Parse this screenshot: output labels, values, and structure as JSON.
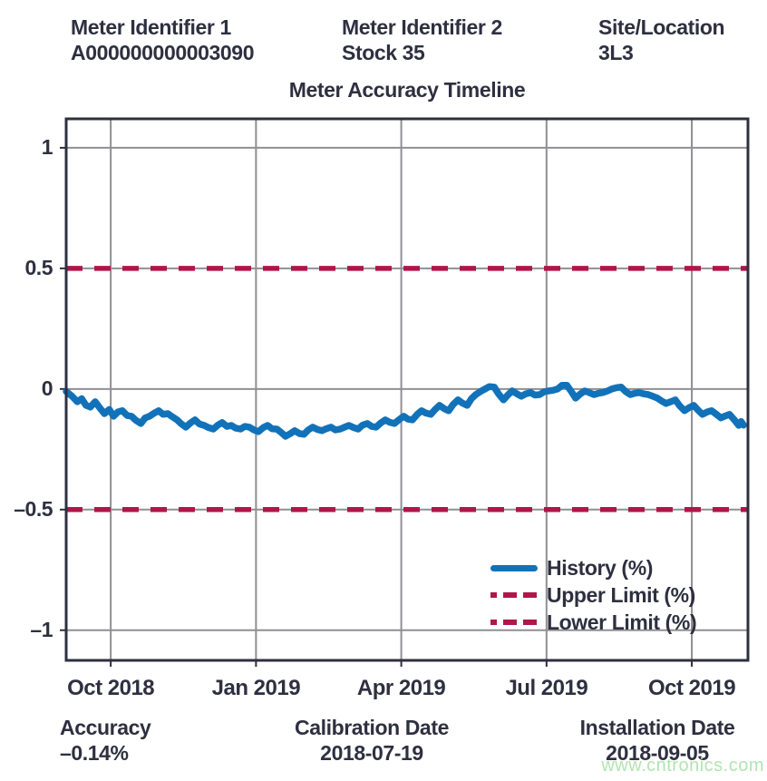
{
  "header": {
    "col1_label": "Meter Identifier 1",
    "col1_value": "A000000000003090",
    "col2_label": "Meter Identifier 2",
    "col2_value": "Stock 35",
    "col3_label": "Site/Location",
    "col3_value": "3L3"
  },
  "chart_data": {
    "type": "line",
    "title": "Meter Accuracy Timeline",
    "xlabel": "",
    "ylabel": "",
    "grid": true,
    "legend_position": "lower right",
    "x_axis": {
      "unit": "months since Oct 2018",
      "lim": [
        -0.92,
        13.16
      ],
      "tick_positions": [
        0,
        3,
        6,
        9,
        12
      ],
      "tick_labels": [
        "Oct 2018",
        "Jan 2019",
        "Apr 2019",
        "Jul 2019",
        "Oct 2019"
      ]
    },
    "y_axis": {
      "lim": [
        -1.125,
        1.12
      ],
      "tick_values": [
        1,
        0.5,
        0,
        -0.5,
        -1
      ],
      "tick_labels": [
        "1",
        "0.5",
        "0",
        "–0.5",
        "–1"
      ]
    },
    "upper_limit": 0.5,
    "lower_limit": -0.5,
    "legend": [
      {
        "label": "History (%)",
        "style": "solid",
        "color": "#1272b9"
      },
      {
        "label": "Upper Limit (%)",
        "style": "dashed",
        "color": "#b0164a"
      },
      {
        "label": "Lower Limit (%)",
        "style": "dashed",
        "color": "#b0164a"
      }
    ],
    "series": [
      {
        "name": "History (%)",
        "points": [
          [
            -0.92,
            -0.01
          ],
          [
            -0.8,
            -0.03
          ],
          [
            -0.69,
            -0.053
          ],
          [
            -0.6,
            -0.04
          ],
          [
            -0.51,
            -0.068
          ],
          [
            -0.42,
            -0.075
          ],
          [
            -0.32,
            -0.053
          ],
          [
            -0.22,
            -0.08
          ],
          [
            -0.13,
            -0.102
          ],
          [
            -0.03,
            -0.085
          ],
          [
            0.06,
            -0.113
          ],
          [
            0.15,
            -0.095
          ],
          [
            0.24,
            -0.09
          ],
          [
            0.34,
            -0.11
          ],
          [
            0.43,
            -0.113
          ],
          [
            0.52,
            -0.13
          ],
          [
            0.62,
            -0.143
          ],
          [
            0.71,
            -0.12
          ],
          [
            0.8,
            -0.113
          ],
          [
            0.9,
            -0.1
          ],
          [
            0.99,
            -0.09
          ],
          [
            1.08,
            -0.105
          ],
          [
            1.18,
            -0.102
          ],
          [
            1.27,
            -0.115
          ],
          [
            1.37,
            -0.128
          ],
          [
            1.46,
            -0.145
          ],
          [
            1.55,
            -0.158
          ],
          [
            1.65,
            -0.14
          ],
          [
            1.74,
            -0.128
          ],
          [
            1.83,
            -0.145
          ],
          [
            1.93,
            -0.151
          ],
          [
            2.02,
            -0.16
          ],
          [
            2.12,
            -0.166
          ],
          [
            2.21,
            -0.15
          ],
          [
            2.3,
            -0.139
          ],
          [
            2.4,
            -0.155
          ],
          [
            2.49,
            -0.151
          ],
          [
            2.58,
            -0.162
          ],
          [
            2.68,
            -0.166
          ],
          [
            2.77,
            -0.155
          ],
          [
            2.86,
            -0.158
          ],
          [
            2.96,
            -0.17
          ],
          [
            3.05,
            -0.177
          ],
          [
            3.15,
            -0.16
          ],
          [
            3.24,
            -0.151
          ],
          [
            3.33,
            -0.165
          ],
          [
            3.43,
            -0.166
          ],
          [
            3.52,
            -0.18
          ],
          [
            3.61,
            -0.196
          ],
          [
            3.71,
            -0.185
          ],
          [
            3.8,
            -0.173
          ],
          [
            3.9,
            -0.185
          ],
          [
            3.99,
            -0.188
          ],
          [
            4.08,
            -0.17
          ],
          [
            4.17,
            -0.158
          ],
          [
            4.27,
            -0.168
          ],
          [
            4.36,
            -0.173
          ],
          [
            4.45,
            -0.165
          ],
          [
            4.55,
            -0.158
          ],
          [
            4.64,
            -0.17
          ],
          [
            4.74,
            -0.166
          ],
          [
            4.83,
            -0.158
          ],
          [
            4.92,
            -0.151
          ],
          [
            5.02,
            -0.16
          ],
          [
            5.11,
            -0.166
          ],
          [
            5.2,
            -0.15
          ],
          [
            5.3,
            -0.143
          ],
          [
            5.39,
            -0.155
          ],
          [
            5.48,
            -0.158
          ],
          [
            5.58,
            -0.14
          ],
          [
            5.67,
            -0.128
          ],
          [
            5.76,
            -0.138
          ],
          [
            5.86,
            -0.143
          ],
          [
            5.95,
            -0.128
          ],
          [
            6.05,
            -0.113
          ],
          [
            6.14,
            -0.125
          ],
          [
            6.23,
            -0.128
          ],
          [
            6.33,
            -0.105
          ],
          [
            6.42,
            -0.09
          ],
          [
            6.51,
            -0.1
          ],
          [
            6.61,
            -0.105
          ],
          [
            6.7,
            -0.085
          ],
          [
            6.79,
            -0.068
          ],
          [
            6.89,
            -0.082
          ],
          [
            6.98,
            -0.09
          ],
          [
            7.07,
            -0.065
          ],
          [
            7.17,
            -0.045
          ],
          [
            7.26,
            -0.058
          ],
          [
            7.36,
            -0.068
          ],
          [
            7.45,
            -0.04
          ],
          [
            7.54,
            -0.023
          ],
          [
            7.64,
            -0.01
          ],
          [
            7.73,
            0.0
          ],
          [
            7.82,
            0.01
          ],
          [
            7.92,
            0.008
          ],
          [
            8.01,
            -0.02
          ],
          [
            8.11,
            -0.045
          ],
          [
            8.2,
            -0.025
          ],
          [
            8.29,
            -0.008
          ],
          [
            8.39,
            -0.02
          ],
          [
            8.48,
            -0.03
          ],
          [
            8.57,
            -0.02
          ],
          [
            8.67,
            -0.015
          ],
          [
            8.76,
            -0.025
          ],
          [
            8.86,
            -0.023
          ],
          [
            8.95,
            -0.012
          ],
          [
            9.04,
            -0.008
          ],
          [
            9.14,
            -0.005
          ],
          [
            9.23,
            0.0
          ],
          [
            9.32,
            0.015
          ],
          [
            9.42,
            0.015
          ],
          [
            9.51,
            -0.01
          ],
          [
            9.6,
            -0.038
          ],
          [
            9.7,
            -0.02
          ],
          [
            9.79,
            -0.008
          ],
          [
            9.88,
            -0.015
          ],
          [
            9.98,
            -0.023
          ],
          [
            10.07,
            -0.018
          ],
          [
            10.16,
            -0.015
          ],
          [
            10.26,
            -0.008
          ],
          [
            10.35,
            0.0
          ],
          [
            10.44,
            0.005
          ],
          [
            10.54,
            0.008
          ],
          [
            10.63,
            -0.01
          ],
          [
            10.73,
            -0.023
          ],
          [
            10.82,
            -0.018
          ],
          [
            10.91,
            -0.015
          ],
          [
            11.01,
            -0.02
          ],
          [
            11.1,
            -0.023
          ],
          [
            11.19,
            -0.03
          ],
          [
            11.29,
            -0.038
          ],
          [
            11.38,
            -0.05
          ],
          [
            11.47,
            -0.06
          ],
          [
            11.57,
            -0.052
          ],
          [
            11.66,
            -0.045
          ],
          [
            11.75,
            -0.07
          ],
          [
            11.85,
            -0.09
          ],
          [
            11.94,
            -0.078
          ],
          [
            12.04,
            -0.068
          ],
          [
            12.13,
            -0.088
          ],
          [
            12.22,
            -0.105
          ],
          [
            12.32,
            -0.095
          ],
          [
            12.41,
            -0.09
          ],
          [
            12.51,
            -0.105
          ],
          [
            12.6,
            -0.12
          ],
          [
            12.69,
            -0.112
          ],
          [
            12.78,
            -0.105
          ],
          [
            12.88,
            -0.128
          ],
          [
            12.97,
            -0.151
          ],
          [
            13.02,
            -0.135
          ],
          [
            13.07,
            -0.15
          ]
        ]
      }
    ]
  },
  "footer": {
    "accuracy_label": "Accuracy",
    "accuracy_value": "–0.14%",
    "calibration_label": "Calibration Date",
    "calibration_value": "2018-07-19",
    "installation_label": "Installation Date",
    "installation_value": "2018-09-05"
  },
  "watermark": "www.cntronics.com",
  "colors": {
    "text": "#2e3040",
    "history": "#1272b9",
    "limit": "#b0164a",
    "grid": "#8f8f94",
    "frame": "#2e3040",
    "watermark": "#b2e4b2"
  }
}
